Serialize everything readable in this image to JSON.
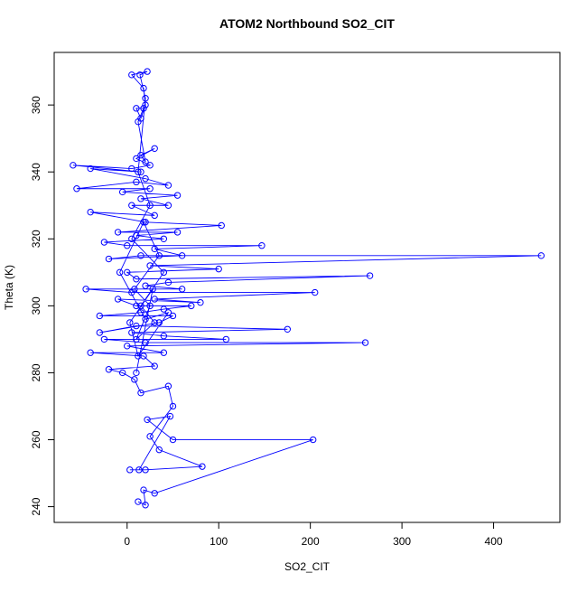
{
  "chart_data": {
    "type": "line",
    "title": "ATOM2 Northbound SO2_CIT",
    "x_label": "SO2_CIT",
    "y_label": "Theta (K)",
    "x": [
      12,
      20,
      18,
      30,
      203,
      50,
      22,
      47,
      13,
      3,
      20,
      82,
      35,
      25,
      50,
      45,
      15,
      8,
      -5,
      -20,
      30,
      18,
      -40,
      40,
      0,
      260,
      20,
      -25,
      108,
      40,
      5,
      175,
      10,
      -30,
      35,
      50,
      -30,
      15,
      40,
      70,
      10,
      -10,
      80,
      30,
      205,
      5,
      -45,
      60,
      20,
      45,
      265,
      10,
      0,
      100,
      25,
      452,
      15,
      -20,
      60,
      30,
      147,
      0,
      -25,
      40,
      10,
      55,
      -10,
      103,
      20,
      -40,
      30,
      5,
      45,
      15,
      55,
      -5,
      25,
      -55,
      10,
      45,
      20,
      -40,
      15,
      -59,
      5,
      25,
      10,
      30,
      15,
      20,
      12,
      18,
      10,
      15,
      20,
      18,
      5,
      22,
      14,
      20,
      12,
      25,
      5,
      40,
      15,
      30,
      10,
      25,
      8,
      35,
      18,
      -8,
      20,
      45,
      12,
      3,
      28,
      10
    ],
    "series": [
      {
        "color": "#0000ff",
        "values": [
          241.5,
          240.5,
          245,
          244,
          260,
          260,
          266,
          267,
          251,
          251,
          251,
          252,
          257,
          261,
          270,
          276,
          274,
          278,
          280,
          281,
          282,
          285,
          286,
          286,
          288,
          289,
          289,
          290,
          290,
          291,
          292,
          293,
          294,
          292,
          295,
          297,
          297,
          298,
          299,
          300,
          300,
          302,
          301,
          302,
          304,
          304,
          305,
          305,
          306,
          307,
          309,
          308,
          310,
          311,
          312,
          315,
          315,
          314,
          315,
          317,
          318,
          318,
          319,
          320,
          321,
          322,
          322,
          324,
          325,
          328,
          327,
          330,
          330,
          332,
          333,
          334,
          335,
          335,
          337,
          336,
          338,
          341,
          340,
          342,
          341,
          342,
          344,
          347,
          345,
          343,
          355,
          359,
          359,
          356,
          360,
          365,
          369,
          370,
          369,
          362,
          340,
          330,
          320,
          310,
          300,
          295,
          290,
          300,
          305,
          315,
          325,
          310,
          296,
          298,
          285,
          295,
          305,
          280
        ]
      }
    ],
    "xlim": [
      -79.6,
      472.4
    ],
    "ylim": [
      235.3,
      375.7
    ],
    "xticks": [
      0,
      100,
      200,
      300,
      400
    ],
    "yticks": [
      240,
      260,
      280,
      300,
      320,
      340,
      360
    ],
    "grid": false
  }
}
